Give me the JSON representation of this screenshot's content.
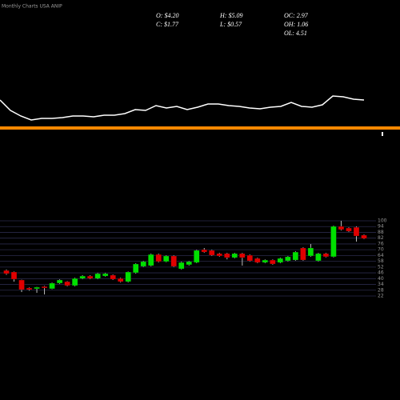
{
  "chart_data": [
    {
      "type": "candlestick",
      "title": "Monthly Charts USA ANIP",
      "stats": [
        "O: $4.20",
        "H: $5.09",
        "OC: 2.97",
        "C: $1.77",
        "L: $0.57",
        "OH: 1.06",
        "OL: 4.51"
      ],
      "up_color": "#00e000",
      "down_color": "#e00000",
      "grid": true,
      "ylim": [
        22,
        100
      ],
      "yticks": [
        100,
        94,
        88,
        82,
        76,
        70,
        64,
        58,
        52,
        46,
        40,
        34,
        28,
        22
      ],
      "open": [
        48.5,
        46.9,
        38.6,
        30.3,
        29.5,
        31.8,
        29.5,
        35.3,
        36.9,
        32.8,
        40.2,
        42.7,
        40.2,
        42.7,
        43.6,
        40.2,
        36.9,
        46.1,
        52.7,
        53.5,
        65.1,
        57.7,
        63.5,
        50.2,
        54.4,
        56.8,
        70.1,
        69.3,
        66,
        66,
        61.8,
        66,
        64.3,
        61,
        56.8,
        59.3,
        56.8,
        58.5,
        59.3,
        71.8,
        63.5,
        58.5,
        66,
        62.7,
        94.2,
        92.5,
        93.3,
        85.1
      ],
      "high": [
        49.5,
        47.5,
        39,
        31,
        31.5,
        32.5,
        36,
        39.4,
        37.5,
        41,
        43.6,
        43.6,
        46,
        46,
        44.4,
        41,
        47.5,
        56,
        58.5,
        66,
        66,
        64.3,
        64.3,
        57.7,
        58.5,
        70.1,
        71.8,
        70.1,
        66.8,
        66.8,
        66.8,
        66.8,
        65.1,
        61.8,
        60,
        60,
        61.8,
        63.5,
        68.5,
        72.6,
        75.9,
        66.8,
        66.8,
        95,
        100,
        93.3,
        94.2,
        85.9
      ],
      "low": [
        44,
        36.9,
        26.1,
        27.5,
        25.3,
        23.6,
        29,
        34.5,
        32,
        32,
        39.4,
        39.4,
        39.4,
        42,
        38.6,
        36,
        36,
        45.2,
        52,
        52.7,
        56.8,
        57,
        52,
        49.4,
        53.5,
        56,
        66.8,
        63.5,
        62.7,
        60,
        61,
        53.5,
        57.7,
        56,
        56,
        54.4,
        56,
        57.7,
        58.5,
        58.5,
        62.7,
        57.7,
        62,
        62,
        90,
        88.4,
        78.4,
        81
      ],
      "close": [
        45.2,
        39.4,
        28.6,
        28.6,
        31.1,
        30.3,
        35.3,
        38.6,
        32.8,
        40.2,
        42.7,
        40.2,
        45.2,
        45.2,
        39.4,
        36.9,
        46.9,
        55.2,
        57.7,
        65.1,
        57.7,
        63.5,
        52.7,
        56.8,
        57.7,
        69.3,
        67.6,
        64.3,
        63.5,
        61.8,
        66,
        61.8,
        58.5,
        56.8,
        59.3,
        55.2,
        61,
        62.7,
        67.6,
        59.3,
        71.8,
        66,
        62.7,
        94.2,
        90.9,
        89.2,
        84.2,
        81.7
      ]
    },
    {
      "type": "line",
      "color": "#ffffff",
      "ylim": [
        0,
        50
      ],
      "values": [
        35,
        22,
        15,
        10,
        12,
        12,
        13,
        15,
        15,
        14,
        16,
        16,
        18,
        23,
        22,
        28,
        25,
        27,
        23,
        26,
        30,
        30,
        28,
        27,
        25,
        24,
        26,
        27,
        32,
        27,
        26,
        29,
        40,
        39,
        36,
        35
      ]
    }
  ]
}
